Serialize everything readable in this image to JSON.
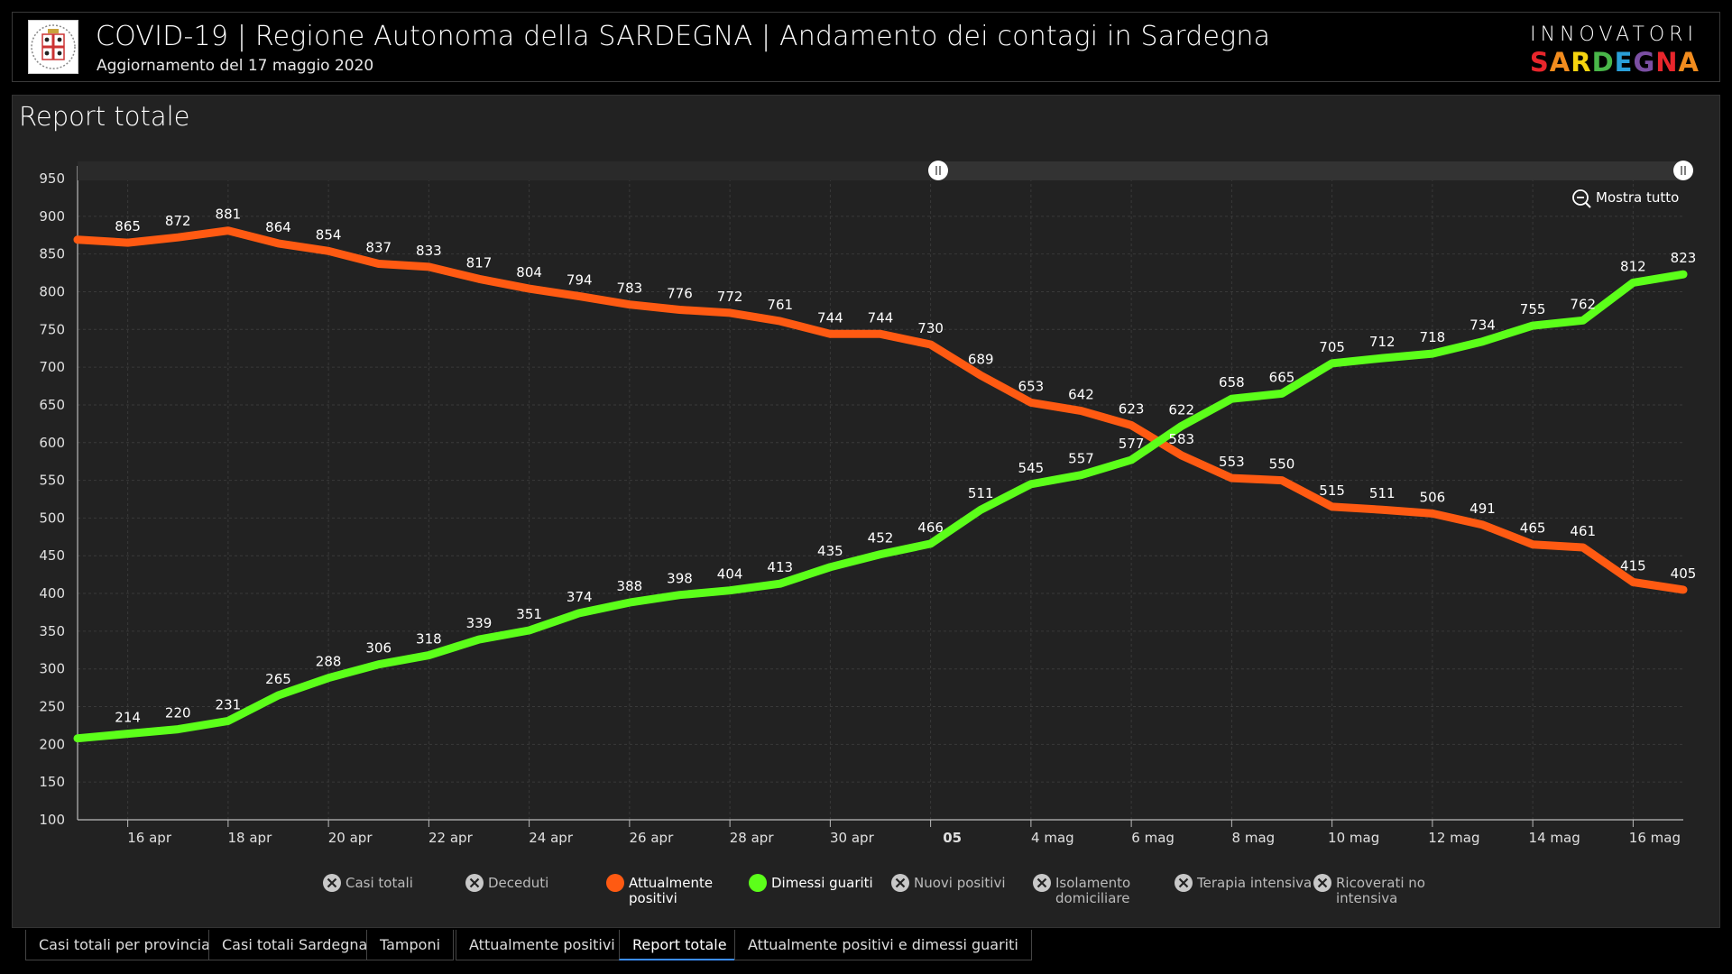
{
  "header": {
    "title": "COVID-19 | Regione Autonoma della SARDEGNA | Andamento dei contagi in Sardegna",
    "subtitle": "Aggiornamento del 17 maggio 2020",
    "brand_top": "INNOVATORI",
    "brand_bottom": "SARDEGNA",
    "brand_colors": [
      "#e8262c",
      "#f28c1e",
      "#f5d40f",
      "#49b649",
      "#2a9fd8",
      "#7b4fa3",
      "#e8262c",
      "#f28c1e"
    ]
  },
  "panel": {
    "title": "Report totale",
    "reset_label": "Mostra tutto"
  },
  "colors": {
    "positive": "#ff5a12",
    "healed": "#5cff1a",
    "disabled": "#c8c8c8",
    "background": "#222222"
  },
  "chart_data": {
    "type": "line",
    "ylim": [
      100,
      950
    ],
    "yticks": [
      100,
      150,
      200,
      250,
      300,
      350,
      400,
      450,
      500,
      550,
      600,
      650,
      700,
      750,
      800,
      850,
      900,
      950
    ],
    "x_start": "2020-04-15",
    "x_end": "2020-05-17",
    "x_ticks": [
      {
        "date": "2020-04-16",
        "label": "16 apr"
      },
      {
        "date": "2020-04-18",
        "label": "18 apr"
      },
      {
        "date": "2020-04-20",
        "label": "20 apr"
      },
      {
        "date": "2020-04-22",
        "label": "22 apr"
      },
      {
        "date": "2020-04-24",
        "label": "24 apr"
      },
      {
        "date": "2020-04-26",
        "label": "26 apr"
      },
      {
        "date": "2020-04-28",
        "label": "28 apr"
      },
      {
        "date": "2020-04-30",
        "label": "30 apr"
      },
      {
        "date": "2020-05-02",
        "label": "05",
        "bold": true
      },
      {
        "date": "2020-05-04",
        "label": "4 mag"
      },
      {
        "date": "2020-05-06",
        "label": "6 mag"
      },
      {
        "date": "2020-05-08",
        "label": "8 mag"
      },
      {
        "date": "2020-05-10",
        "label": "10 mag"
      },
      {
        "date": "2020-05-12",
        "label": "12 mag"
      },
      {
        "date": "2020-05-14",
        "label": "14 mag"
      },
      {
        "date": "2020-05-16",
        "label": "16 mag"
      }
    ],
    "series": [
      {
        "name": "Attualmente positivi",
        "color": "#ff5a12",
        "values": [
          869,
          865,
          872,
          881,
          864,
          854,
          837,
          833,
          817,
          804,
          794,
          783,
          776,
          772,
          761,
          744,
          744,
          730,
          689,
          653,
          642,
          623,
          583,
          553,
          550,
          515,
          511,
          506,
          491,
          465,
          461,
          415,
          405
        ],
        "labels": [
          null,
          "865",
          "872",
          "881",
          "864",
          "854",
          "837",
          "833",
          "817",
          "804",
          "794",
          "783",
          "776",
          "772",
          "761",
          "744",
          "744",
          "730",
          "689",
          "653",
          "642",
          "623",
          "583",
          "553",
          "550",
          "515",
          "511",
          "506",
          "491",
          "465",
          "461",
          "415",
          "405"
        ]
      },
      {
        "name": "Dimessi guariti",
        "color": "#5cff1a",
        "values": [
          208,
          214,
          220,
          231,
          265,
          288,
          306,
          318,
          339,
          351,
          374,
          388,
          398,
          404,
          413,
          435,
          452,
          466,
          511,
          545,
          557,
          577,
          622,
          658,
          665,
          705,
          712,
          718,
          734,
          755,
          762,
          812,
          823
        ],
        "labels": [
          null,
          "214",
          "220",
          "231",
          "265",
          "288",
          "306",
          "318",
          "339",
          "351",
          "374",
          "388",
          "398",
          "404",
          "413",
          "435",
          "452",
          "466",
          "511",
          "545",
          "557",
          "577",
          "622",
          "658",
          "665",
          "705",
          "712",
          "718",
          "734",
          "755",
          "762",
          "812",
          "823"
        ]
      }
    ],
    "legend": [
      {
        "label": "Casi totali",
        "active": false
      },
      {
        "label": "Deceduti",
        "active": false
      },
      {
        "label": "Attualmente positivi",
        "active": true,
        "color": "#ff5a12"
      },
      {
        "label": "Dimessi guariti",
        "active": true,
        "color": "#5cff1a"
      },
      {
        "label": "Nuovi positivi",
        "active": false
      },
      {
        "label": "Isolamento domiciliare",
        "active": false
      },
      {
        "label": "Terapia intensiva",
        "active": false
      },
      {
        "label": "Ricoverati no intensiva",
        "active": false
      }
    ],
    "legend_position": "bottom",
    "grid": true
  },
  "tabs": [
    {
      "label": "Casi totali per provincia",
      "active": false
    },
    {
      "label": "Casi totali Sardegna",
      "active": false
    },
    {
      "label": "Tamponi",
      "active": false
    },
    {
      "label": "Attualmente positivi",
      "active": false
    },
    {
      "label": "Report totale",
      "active": true
    },
    {
      "label": "Attualmente positivi e dimessi guariti",
      "active": false
    }
  ]
}
